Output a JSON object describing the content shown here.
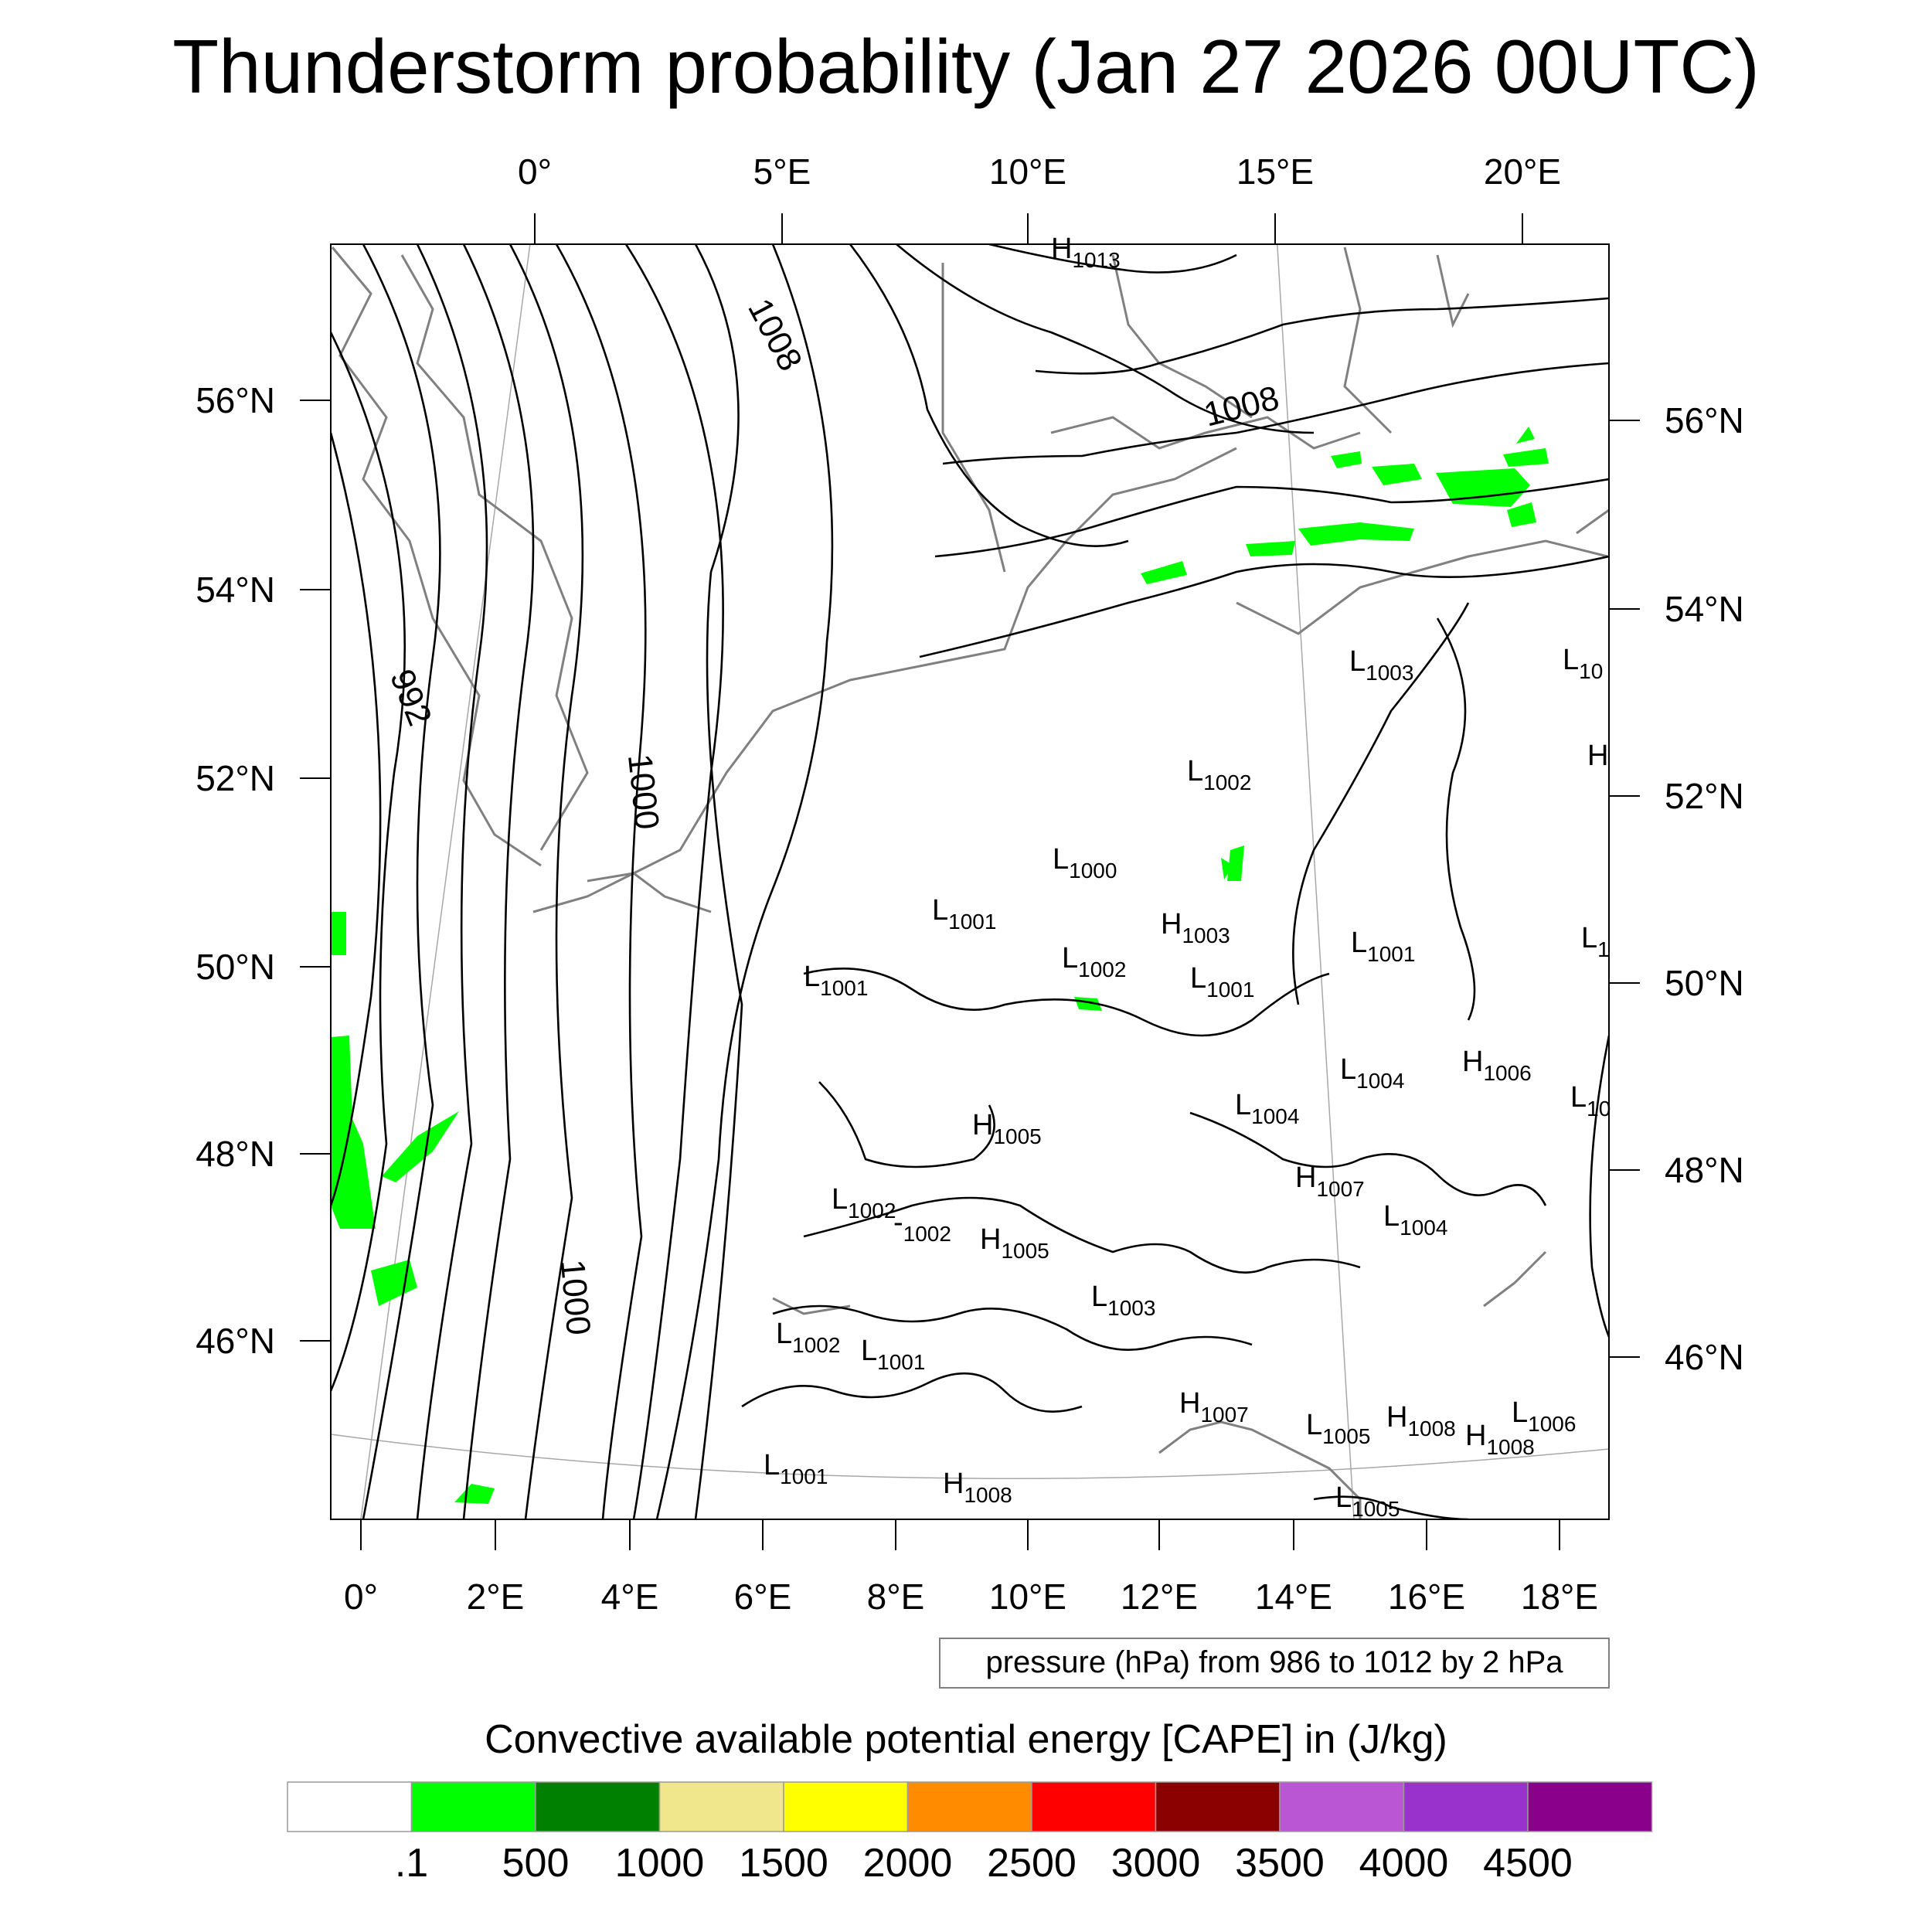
{
  "title": "Thunderstorm probability (Jan 27 2026 00UTC)",
  "top_lon_labels": [
    "0°",
    "5°E",
    "10°E",
    "15°E",
    "20°E"
  ],
  "bottom_lon_labels": [
    "0°",
    "2°E",
    "4°E",
    "6°E",
    "8°E",
    "10°E",
    "12°E",
    "14°E",
    "16°E",
    "18°E"
  ],
  "left_lat_labels": [
    "56°N",
    "54°N",
    "52°N",
    "50°N",
    "48°N",
    "46°N"
  ],
  "right_lat_labels": [
    "56°N",
    "54°N",
    "52°N",
    "50°N",
    "48°N",
    "46°N"
  ],
  "isobar_labels": [
    "1008",
    "1008",
    "992",
    "1000",
    "1000"
  ],
  "pressure_centers": [
    {
      "letter": "H",
      "value": "1013"
    },
    {
      "letter": "L",
      "value": "1003"
    },
    {
      "letter": "L",
      "value": "1002"
    },
    {
      "letter": "L",
      "value": "1000"
    },
    {
      "letter": "L",
      "value": "1001"
    },
    {
      "letter": "H",
      "value": "1003"
    },
    {
      "letter": "L",
      "value": "1001"
    },
    {
      "letter": "L",
      "value": "1002"
    },
    {
      "letter": "L",
      "value": "1001"
    },
    {
      "letter": "L",
      "value": "1001"
    },
    {
      "letter": "L",
      "value": "1004"
    },
    {
      "letter": "H",
      "value": "1006"
    },
    {
      "letter": "L",
      "value": "1004"
    },
    {
      "letter": "H",
      "value": "1005"
    },
    {
      "letter": "H",
      "value": "1007"
    },
    {
      "letter": "L",
      "value": "1002"
    },
    {
      "letter": "L",
      "value": "1002"
    },
    {
      "letter": "H",
      "value": "1005"
    },
    {
      "letter": "L",
      "value": "1004"
    },
    {
      "letter": "L",
      "value": "1003"
    },
    {
      "letter": "L",
      "value": "1002"
    },
    {
      "letter": "L",
      "value": "1001"
    },
    {
      "letter": "H",
      "value": "1007"
    },
    {
      "letter": "L",
      "value": "1005"
    },
    {
      "letter": "H",
      "value": "1008"
    },
    {
      "letter": "H",
      "value": "1008"
    },
    {
      "letter": "L",
      "value": "1006"
    },
    {
      "letter": "L",
      "value": "1001"
    },
    {
      "letter": "H",
      "value": "1008"
    },
    {
      "letter": "L",
      "value": "1005"
    }
  ],
  "edge_fragments": [
    "L",
    "10",
    "H",
    "L",
    "1",
    "L",
    "10"
  ],
  "contour_info": "pressure (hPa) from 986 to 1012 by 2 hPa",
  "colorbar": {
    "title": "Convective available potential energy [CAPE] in (J/kg)",
    "labels": [
      ".1",
      "500",
      "1000",
      "1500",
      "2000",
      "2500",
      "3000",
      "3500",
      "4000",
      "4500"
    ],
    "colors": [
      "#ffffff",
      "#00ff00",
      "#008000",
      "#f0e68c",
      "#ffff00",
      "#ff8c00",
      "#ff0000",
      "#8b0000",
      "#ba55d3",
      "#9932cc",
      "#8b008b"
    ]
  },
  "colors": {
    "cape_green": "#00ff00",
    "coastline": "#808080",
    "isobar": "#000000",
    "graticule": "#a0a0a0"
  }
}
